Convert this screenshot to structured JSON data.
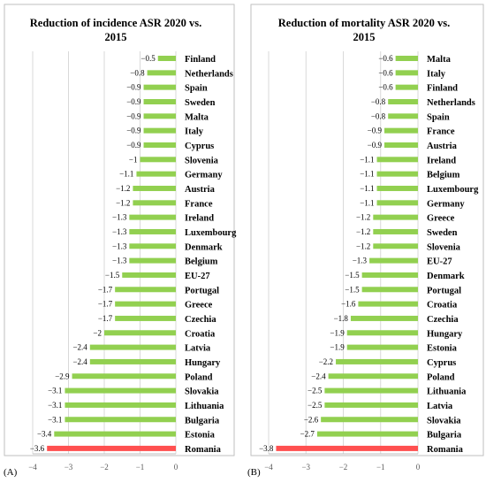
{
  "panels": [
    {
      "label": "(A)",
      "chart_data": {
        "type": "bar",
        "orientation": "horizontal",
        "title_lines": [
          "Reduction of incidence ASR 2020 vs.",
          "2015"
        ],
        "categories": [
          "Finland",
          "Netherlands",
          "Spain",
          "Sweden",
          "Malta",
          "Italy",
          "Cyprus",
          "Slovenia",
          "Germany",
          "Austria",
          "France",
          "Ireland",
          "Luxembourg",
          "Denmark",
          "Belgium",
          "EU-27",
          "Portugal",
          "Greece",
          "Czechia",
          "Croatia",
          "Latvia",
          "Hungary",
          "Poland",
          "Slovakia",
          "Lithuania",
          "Bulgaria",
          "Estonia",
          "Romania"
        ],
        "values": [
          -0.5,
          -0.8,
          -0.9,
          -0.9,
          -0.9,
          -0.9,
          -0.9,
          -1,
          -1.1,
          -1.2,
          -1.2,
          -1.3,
          -1.3,
          -1.3,
          -1.3,
          -1.5,
          -1.7,
          -1.7,
          -1.7,
          -2,
          -2.4,
          -2.4,
          -2.9,
          -3.1,
          -3.1,
          -3.1,
          -3.4,
          -3.6
        ],
        "value_labels": [
          "−0.5",
          "−0.8",
          "−0.9",
          "−0.9",
          "−0.9",
          "−0.9",
          "−0.9",
          "−1",
          "−1.1",
          "−1.2",
          "−1.2",
          "−1.3",
          "−1.3",
          "−1.3",
          "−1.3",
          "−1.5",
          "−1.7",
          "−1.7",
          "−1.7",
          "−2",
          "−2.4",
          "−2.4",
          "−2.9",
          "−3.1",
          "−3.1",
          "−3.1",
          "−3.4",
          "−3.6"
        ],
        "highlight": "Romania",
        "xlim": [
          -4,
          0
        ],
        "xticks": [
          "−4",
          "−3",
          "−2",
          "−1",
          "0"
        ],
        "xtick_values": [
          -4,
          -3,
          -2,
          -1,
          0
        ],
        "grid": true,
        "colors": {
          "bar": "#92d050",
          "highlight": "#ff5050",
          "grid": "#d9d9d9",
          "axis": "#bfbfbf"
        }
      }
    },
    {
      "label": "(B)",
      "chart_data": {
        "type": "bar",
        "orientation": "horizontal",
        "title_lines": [
          "Reduction of mortality ASR 2020 vs.",
          "2015"
        ],
        "categories": [
          "Malta",
          "Italy",
          "Finland",
          "Netherlands",
          "Spain",
          "France",
          "Austria",
          "Ireland",
          "Belgium",
          "Luxembourg",
          "Germany",
          "Greece",
          "Sweden",
          "Slovenia",
          "EU-27",
          "Denmark",
          "Portugal",
          "Croatia",
          "Czechia",
          "Hungary",
          "Estonia",
          "Cyprus",
          "Poland",
          "Lithuania",
          "Latvia",
          "Slovakia",
          "Bulgaria",
          "Romania"
        ],
        "values": [
          -0.6,
          -0.6,
          -0.6,
          -0.8,
          -0.8,
          -0.9,
          -0.9,
          -1.1,
          -1.1,
          -1.1,
          -1.1,
          -1.2,
          -1.2,
          -1.2,
          -1.3,
          -1.5,
          -1.5,
          -1.6,
          -1.8,
          -1.9,
          -1.9,
          -2.2,
          -2.4,
          -2.5,
          -2.5,
          -2.6,
          -2.7,
          -3.8
        ],
        "value_labels": [
          "−0.6",
          "−0.6",
          "−0.6",
          "−0.8",
          "−0.8",
          "−0.9",
          "−0.9",
          "−1.1",
          "−1.1",
          "−1.1",
          "−1.1",
          "−1.2",
          "−1.2",
          "−1.2",
          "−1.3",
          "−1.5",
          "−1.5",
          "−1.6",
          "−1.8",
          "−1.9",
          "−1.9",
          "−2.2",
          "−2.4",
          "−2.5",
          "−2.5",
          "−2.6",
          "−2.7",
          "−3.8"
        ],
        "highlight": "Romania",
        "xlim": [
          -4,
          0
        ],
        "xticks": [
          "−4",
          "−3",
          "−2",
          "−1",
          "0"
        ],
        "xtick_values": [
          -4,
          -3,
          -2,
          -1,
          0
        ],
        "grid": true,
        "colors": {
          "bar": "#92d050",
          "highlight": "#ff5050",
          "grid": "#d9d9d9",
          "axis": "#bfbfbf"
        }
      }
    }
  ]
}
